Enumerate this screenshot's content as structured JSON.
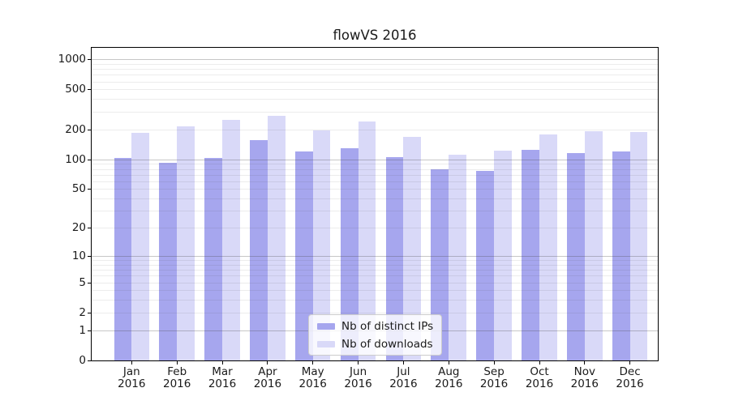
{
  "figure": {
    "title": "flowVS 2016"
  },
  "chart_data": {
    "type": "bar",
    "title": "flowVS 2016",
    "categories": [
      "Jan",
      "Feb",
      "Mar",
      "Apr",
      "May",
      "Jun",
      "Jul",
      "Aug",
      "Sep",
      "Oct",
      "Nov",
      "Dec"
    ],
    "x_year": "2016",
    "series": [
      {
        "name": "Nb of distinct IPs",
        "color": "#a6a6ee",
        "values": [
          104,
          92,
          104,
          156,
          120,
          128,
          106,
          79,
          77,
          125,
          115,
          120
        ]
      },
      {
        "name": "Nb of downloads",
        "color": "#d9d9f8",
        "values": [
          183,
          214,
          247,
          271,
          196,
          239,
          167,
          111,
          123,
          177,
          192,
          188
        ]
      }
    ],
    "yscale": "symlog",
    "ylim": [
      0,
      1300
    ],
    "yticks": [
      0,
      1,
      2,
      5,
      10,
      20,
      50,
      100,
      200,
      500,
      1000
    ],
    "grid": "horizontal major and minor gridlines",
    "legend": {
      "position": "lower center",
      "labels": [
        "Nb of distinct IPs",
        "Nb of downloads"
      ]
    }
  }
}
